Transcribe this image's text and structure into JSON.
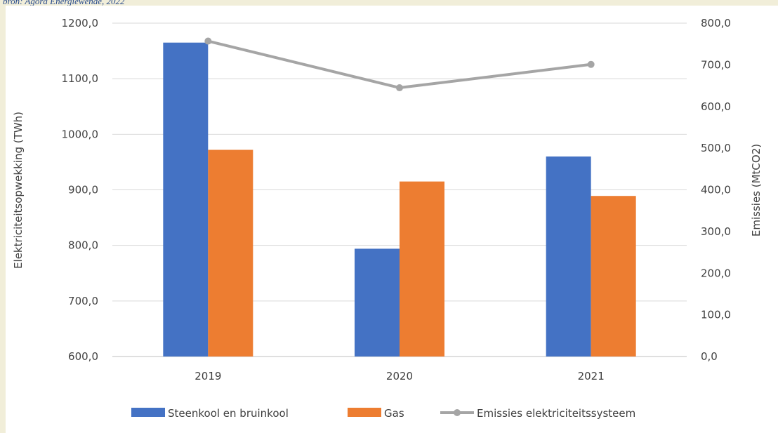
{
  "caption": "bron: Agora Energiewende, 2022",
  "chart_data": {
    "type": "bar",
    "categories": [
      "2019",
      "2020",
      "2021"
    ],
    "series": [
      {
        "name": "Steenkool en bruinkool",
        "type": "bar",
        "axis": "left",
        "color": "#4472c4",
        "values": [
          1165,
          794,
          960
        ]
      },
      {
        "name": "Gas",
        "type": "bar",
        "axis": "left",
        "color": "#ed7d31",
        "values": [
          972,
          915,
          889
        ]
      },
      {
        "name": "Emissies elektriciteitssysteem",
        "type": "line",
        "axis": "right",
        "color": "#a5a5a5",
        "values": [
          757,
          645,
          701
        ]
      }
    ],
    "y_left": {
      "label": "Elektriciteitsopwekking (TWh)",
      "min": 600,
      "max": 1200,
      "ticks": [
        "600,0",
        "700,0",
        "800,0",
        "900,0",
        "1000,0",
        "1100,0",
        "1200,0"
      ]
    },
    "y_right": {
      "label": "Emissies (MtCO2)",
      "min": 0,
      "max": 800,
      "ticks": [
        "0,0",
        "100,0",
        "200,0",
        "300,0",
        "400,0",
        "500,0",
        "600,0",
        "700,0",
        "800,0"
      ]
    },
    "grid": true,
    "legend": "bottom"
  }
}
